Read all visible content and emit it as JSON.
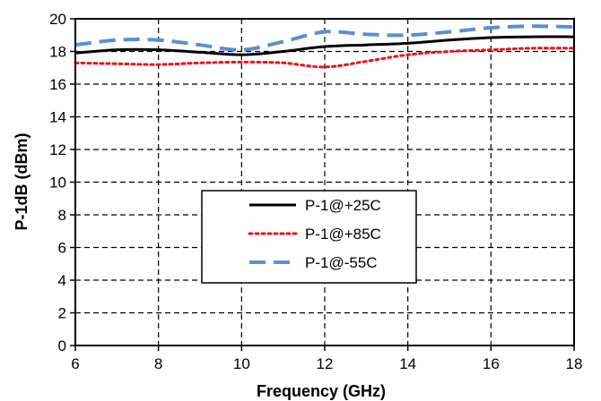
{
  "chart_data": {
    "type": "line",
    "xlabel": "Frequency (GHz)",
    "ylabel": "P-1dB (dBm)",
    "xlim": [
      6,
      18
    ],
    "ylim": [
      0,
      20
    ],
    "x_ticks": [
      6,
      8,
      10,
      12,
      14,
      16,
      18
    ],
    "y_ticks": [
      0,
      2,
      4,
      6,
      8,
      10,
      12,
      14,
      16,
      18,
      20
    ],
    "grid": true,
    "legend_position": "center",
    "series": [
      {
        "name": "P-1@+25C",
        "color": "#000000",
        "style": "solid",
        "x": [
          6,
          7,
          8,
          9,
          10,
          11,
          12,
          13,
          14,
          15,
          16,
          17,
          18
        ],
        "y": [
          17.9,
          18.1,
          18.1,
          17.95,
          17.8,
          18.0,
          18.3,
          18.4,
          18.5,
          18.7,
          18.85,
          18.9,
          18.9
        ]
      },
      {
        "name": "P-1@+85C",
        "color": "#e8141c",
        "style": "dotted",
        "x": [
          6,
          7,
          8,
          9,
          10,
          11,
          12,
          13,
          14,
          15,
          16,
          17,
          18
        ],
        "y": [
          17.3,
          17.25,
          17.2,
          17.3,
          17.35,
          17.3,
          17.05,
          17.4,
          17.8,
          18.0,
          18.1,
          18.2,
          18.2
        ]
      },
      {
        "name": "P-1@-55C",
        "color": "#5b8fd0",
        "style": "dashed",
        "x": [
          6,
          7,
          8,
          9,
          10,
          11,
          12,
          13,
          14,
          15,
          16,
          17,
          18
        ],
        "y": [
          18.4,
          18.7,
          18.7,
          18.4,
          18.1,
          18.6,
          19.2,
          19.05,
          19.0,
          19.2,
          19.45,
          19.55,
          19.5
        ]
      }
    ]
  }
}
